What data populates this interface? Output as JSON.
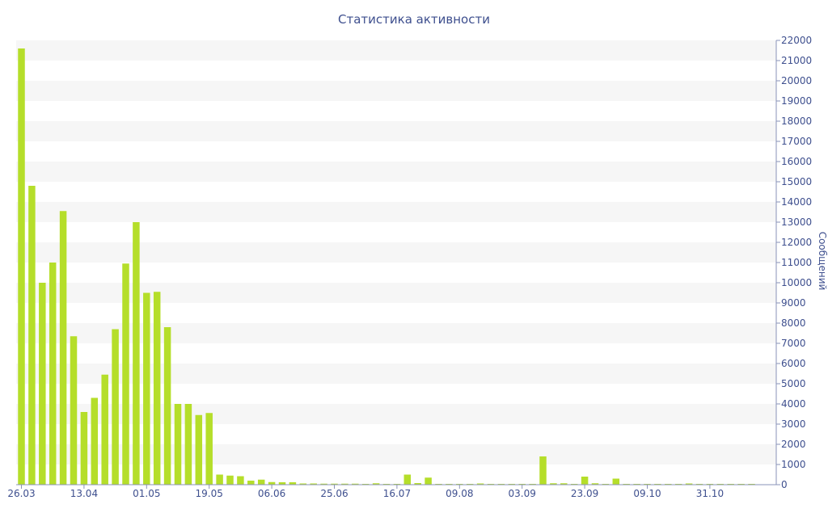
{
  "chart_data": {
    "type": "bar",
    "title": "Статистика активности",
    "ylabel": "Сообщений",
    "y_axis_side": "right",
    "ylim": [
      0,
      22000
    ],
    "y_tick_step": 1000,
    "grid": "alternating horizontal bands",
    "bar_color": "#b5de2a",
    "band_color": "#f6f6f6",
    "text_color": "#3e4f8e",
    "x_tick_labels": [
      "26.03",
      "13.04",
      "01.05",
      "19.05",
      "06.06",
      "25.06",
      "16.07",
      "09.08",
      "03.09",
      "23.09",
      "09.10",
      "31.10"
    ],
    "x_tick_bar_index": [
      0,
      6,
      12,
      18,
      24,
      30,
      36,
      42,
      48,
      54,
      60,
      66
    ],
    "values": [
      21600,
      14800,
      10000,
      11000,
      13550,
      7350,
      3600,
      4300,
      5450,
      7700,
      10950,
      13000,
      9500,
      9550,
      7800,
      4000,
      4000,
      3450,
      3550,
      500,
      450,
      420,
      200,
      250,
      130,
      120,
      120,
      60,
      60,
      50,
      50,
      50,
      50,
      40,
      70,
      40,
      40,
      500,
      80,
      350,
      40,
      40,
      40,
      40,
      60,
      40,
      40,
      40,
      40,
      40,
      1400,
      70,
      70,
      40,
      400,
      70,
      40,
      300,
      40,
      40,
      40,
      40,
      40,
      40,
      60,
      40,
      40,
      40,
      40,
      40,
      40
    ]
  }
}
